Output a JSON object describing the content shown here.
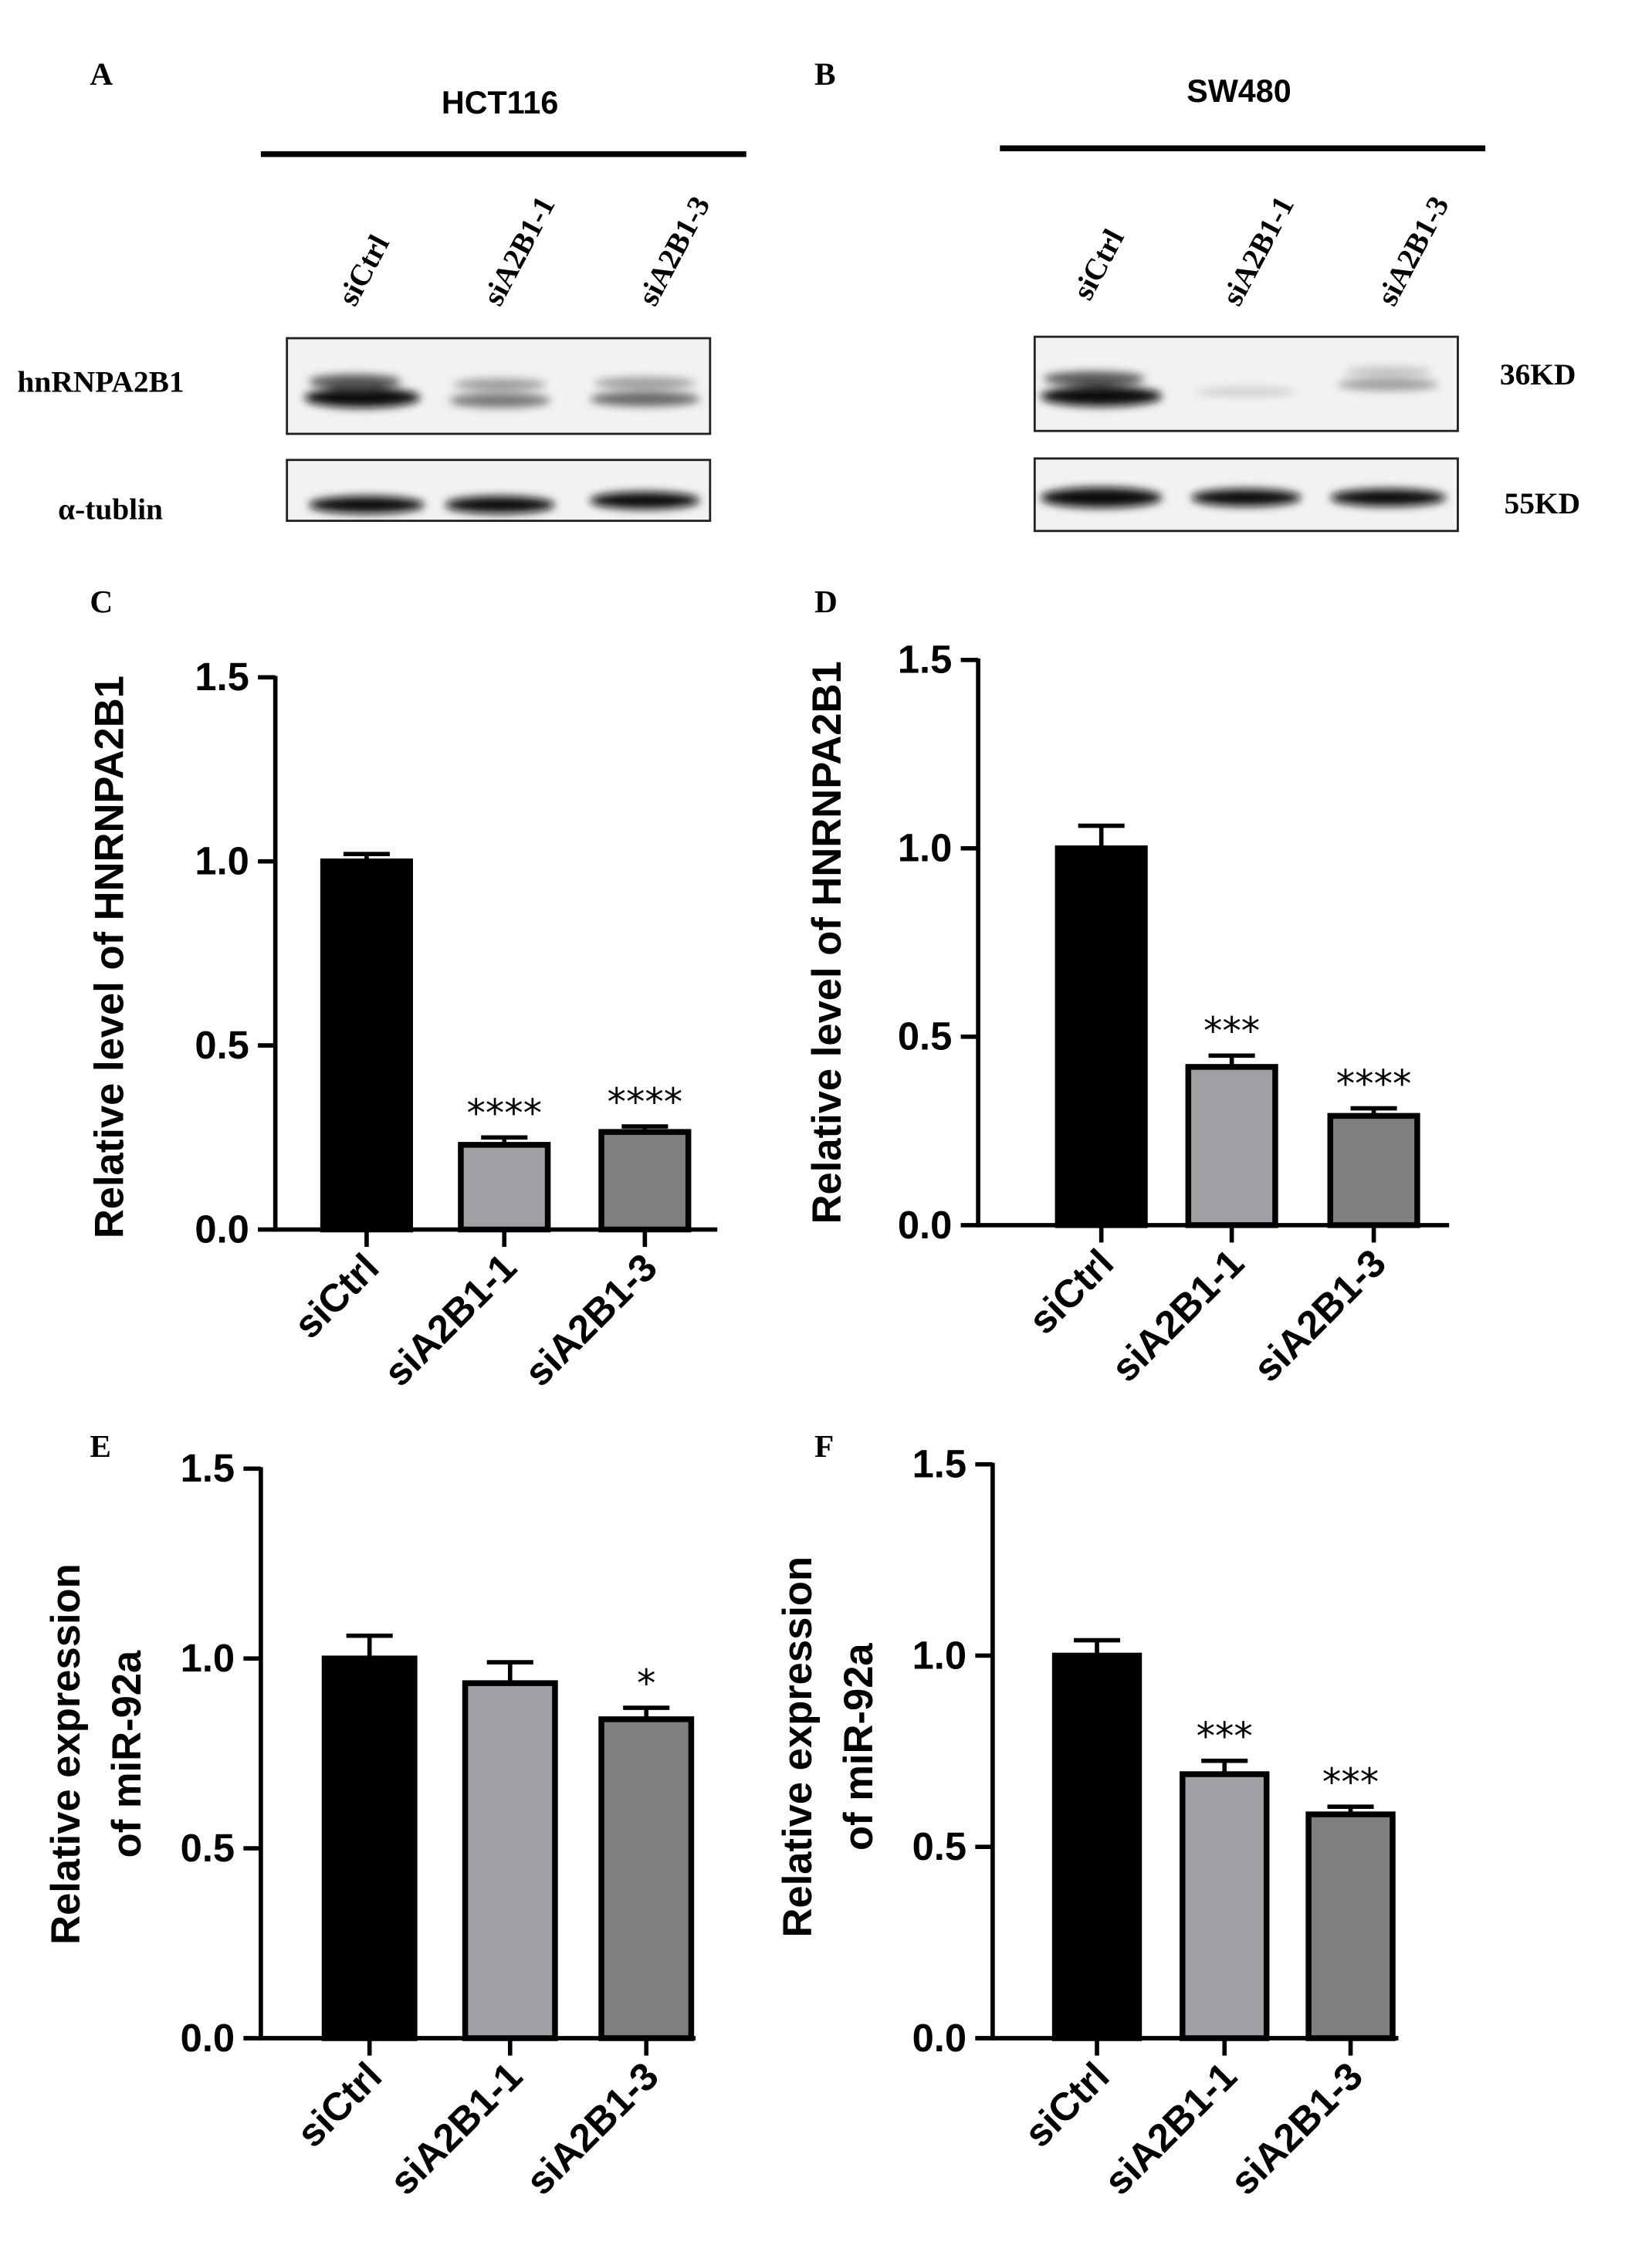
{
  "figure": {
    "blots": [
      {
        "label": "A",
        "cell_line": "HCT116",
        "lanes": [
          "siCtrl",
          "siA2B1-1",
          "siA2B1-3"
        ],
        "proteins": [
          "hnRNPA2B1",
          "α-tublin"
        ]
      },
      {
        "label": "B",
        "cell_line": "SW480",
        "lanes": [
          "siCtrl",
          "siA2B1-1",
          "siA2B1-3"
        ],
        "sizes": [
          "36KD",
          "55KD"
        ]
      }
    ]
  },
  "chart_data": [
    {
      "type": "bar",
      "panel": "C",
      "ylabel": [
        "Relative level of HNRNPA2B1"
      ],
      "categories": [
        "siCtrl",
        "siA2B1-1",
        "siA2B1-3"
      ],
      "values": [
        1.0,
        0.23,
        0.265
      ],
      "errors": [
        0.02,
        0.02,
        0.015
      ],
      "significance": [
        null,
        "****",
        "****"
      ],
      "colors": [
        "#000000",
        "#a0a0a4",
        "#7f7f7f"
      ],
      "ylim": [
        0,
        1.5
      ],
      "yticks": [
        {
          "value": 0,
          "label": "0.0"
        },
        0.5,
        {
          "value": 1,
          "label": "1.0"
        },
        1.5
      ]
    },
    {
      "type": "bar",
      "panel": "D",
      "ylabel": [
        "Relative level of HNRNPA2B1"
      ],
      "categories": [
        "siCtrl",
        "siA2B1-1",
        "siA2B1-3"
      ],
      "values": [
        1.0,
        0.42,
        0.29
      ],
      "errors": [
        0.06,
        0.03,
        0.02
      ],
      "significance": [
        null,
        "***",
        "****"
      ],
      "colors": [
        "#000000",
        "#a0a0a4",
        "#7f7f7f"
      ],
      "ylim": [
        0,
        1.5
      ],
      "yticks": [
        {
          "value": 0,
          "label": "0.0"
        },
        0.5,
        {
          "value": 1,
          "label": "1.0"
        },
        1.5
      ]
    },
    {
      "type": "bar",
      "panel": "E",
      "ylabel": [
        "Relative expression",
        "of miR-92a"
      ],
      "categories": [
        "siCtrl",
        "siA2B1-1",
        "siA2B1-3"
      ],
      "values": [
        1.0,
        0.935,
        0.84
      ],
      "errors": [
        0.06,
        0.055,
        0.03
      ],
      "significance": [
        null,
        null,
        "*"
      ],
      "colors": [
        "#000000",
        "#a0a0a4",
        "#7f7f7f"
      ],
      "ylim": [
        0,
        1.5
      ],
      "yticks": [
        {
          "value": 0,
          "label": "0.0"
        },
        0.5,
        {
          "value": 1,
          "label": "1.0"
        },
        1.5
      ]
    },
    {
      "type": "bar",
      "panel": "F",
      "ylabel": [
        "Relative expression",
        "of miR-92a"
      ],
      "categories": [
        "siCtrl",
        "siA2B1-1",
        "siA2B1-3"
      ],
      "values": [
        1.0,
        0.69,
        0.585
      ],
      "errors": [
        0.04,
        0.035,
        0.02
      ],
      "significance": [
        null,
        "***",
        "***"
      ],
      "colors": [
        "#000000",
        "#a0a0a4",
        "#7f7f7f"
      ],
      "ylim": [
        0,
        1.5
      ],
      "yticks": [
        {
          "value": 0,
          "label": "0.0"
        },
        0.5,
        {
          "value": 1,
          "label": "1.0"
        },
        1.5
      ]
    }
  ]
}
